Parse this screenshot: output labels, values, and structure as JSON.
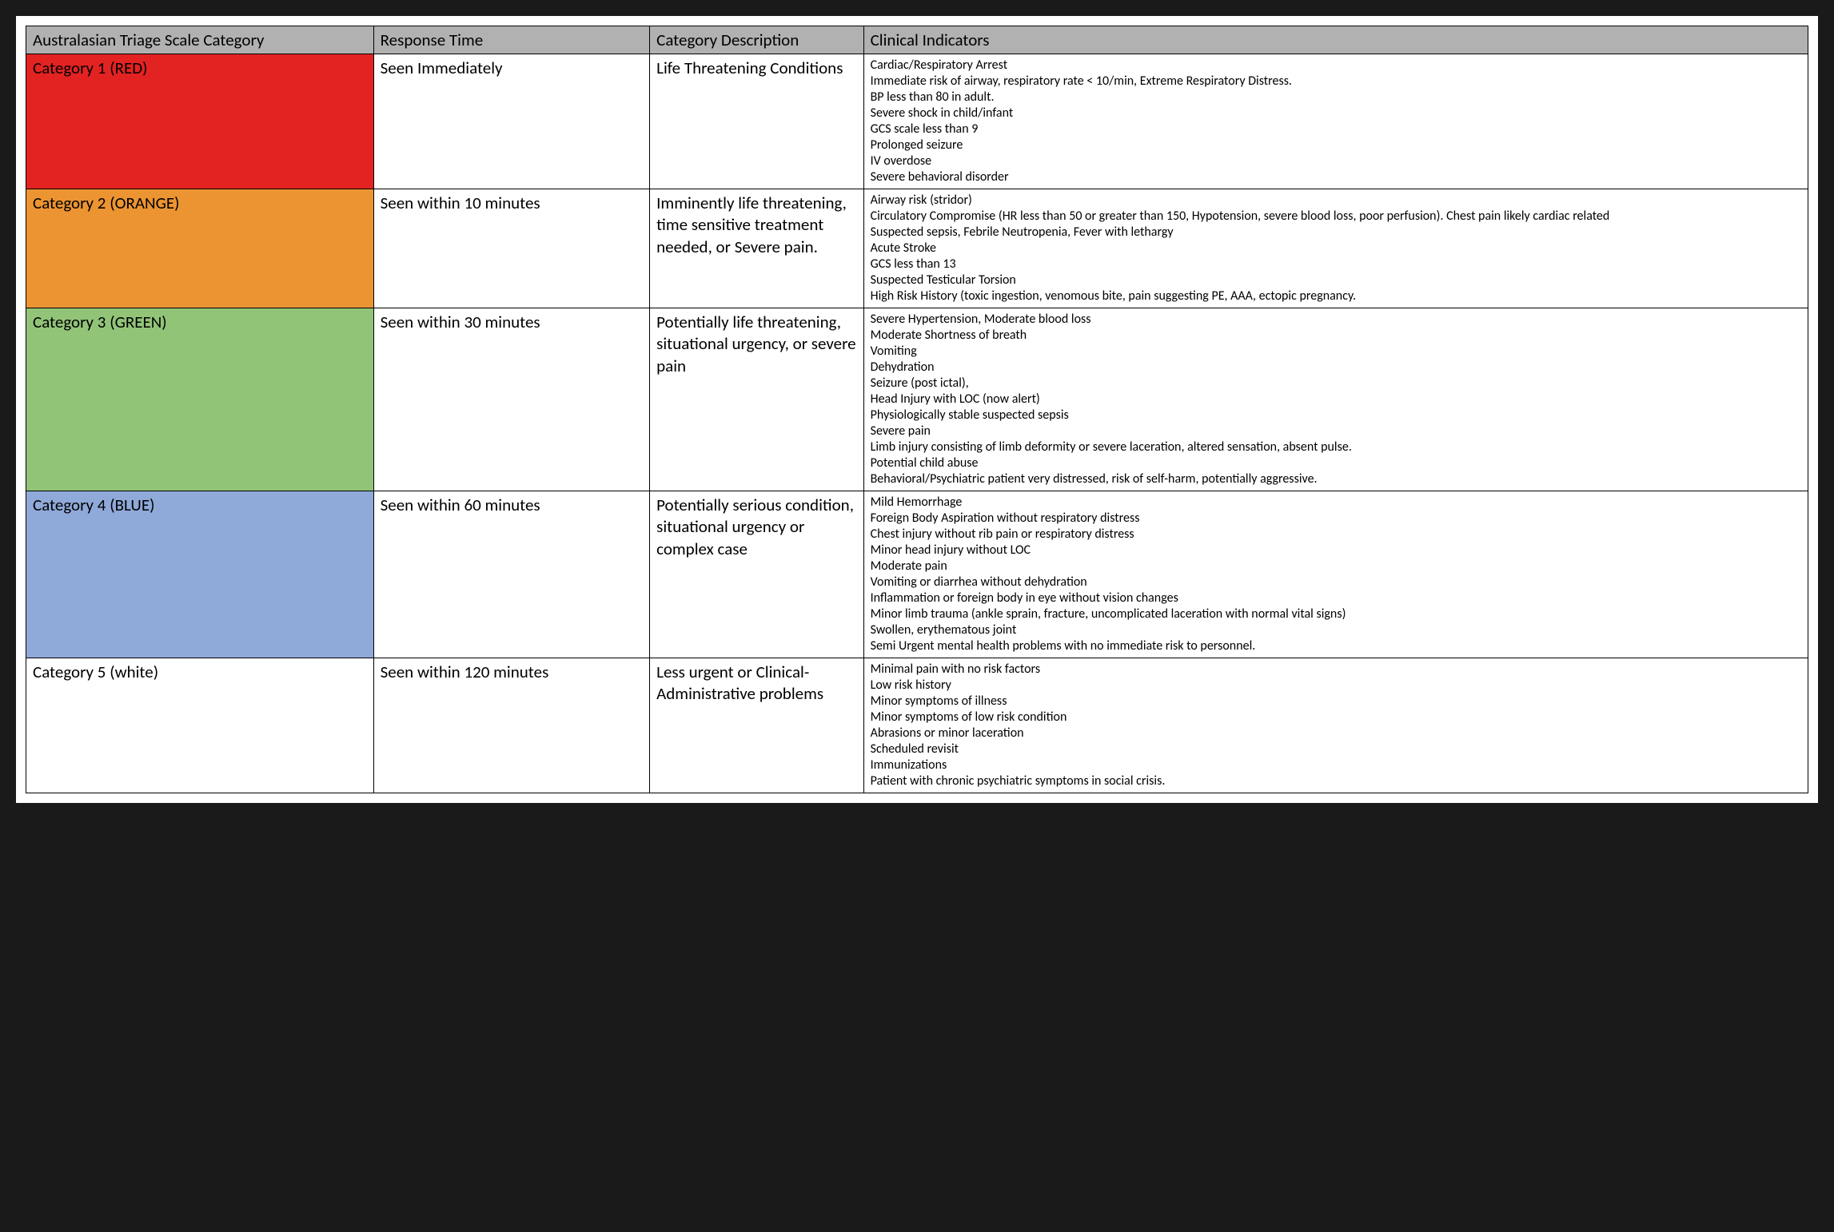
{
  "table": {
    "headers": {
      "category": "Australasian Triage Scale Category",
      "response": "Response Time",
      "description": "Category Description",
      "indicators": "Clinical Indicators"
    },
    "header_bg": "#b1b1b1",
    "border_color": "#000000",
    "page_bg": "#ffffff",
    "outer_bg": "#1a1a1a",
    "header_fontsize": 21,
    "body_fontsize": 21,
    "indicator_fontsize": 16,
    "column_widths_pct": [
      19.5,
      15.5,
      12,
      53
    ],
    "rows": [
      {
        "category": "Category 1 (RED)",
        "category_bg": "#e32322",
        "response": "Seen Immediately",
        "description": "Life Threatening Conditions",
        "indicators": [
          "Cardiac/Respiratory Arrest",
          "Immediate risk of airway, respiratory rate < 10/min, Extreme Respiratory Distress.",
          "BP less than 80 in adult.",
          "Severe shock in child/infant",
          "GCS scale less than 9",
          "Prolonged seizure",
          "IV overdose",
          "Severe behavioral disorder"
        ]
      },
      {
        "category": "Category 2 (ORANGE)",
        "category_bg": "#ec9432",
        "response": "Seen within 10 minutes",
        "description": "Imminently life threatening, time sensitive treatment needed, or Severe pain.",
        "indicators": [
          "Airway risk (stridor)",
          "Circulatory Compromise (HR less than 50 or greater than 150, Hypotension, severe blood loss, poor perfusion). Chest pain likely cardiac related",
          "Suspected sepsis, Febrile Neutropenia, Fever with lethargy",
          "Acute Stroke",
          "GCS less than 13",
          "Suspected Testicular Torsion",
          "High Risk History (toxic ingestion, venomous bite, pain suggesting PE, AAA, ectopic pregnancy."
        ]
      },
      {
        "category": "Category 3 (GREEN)",
        "category_bg": "#92c478",
        "response": "Seen within 30 minutes",
        "description": "Potentially life threatening, situational urgency, or severe pain",
        "indicators": [
          "Severe Hypertension, Moderate blood loss",
          "Moderate Shortness of breath",
          "Vomiting",
          "Dehydration",
          "Seizure (post ictal),",
          "Head Injury with LOC (now alert)",
          "Physiologically stable suspected sepsis",
          "Severe pain",
          "Limb injury consisting of limb deformity or severe laceration, altered sensation, absent pulse.",
          "Potential child abuse",
          "Behavioral/Psychiatric patient very distressed, risk of self-harm, potentially aggressive."
        ]
      },
      {
        "category": "Category 4 (BLUE)",
        "category_bg": "#8fa9d9",
        "response": "Seen within 60 minutes",
        "description": "Potentially serious condition, situational urgency or complex case",
        "indicators": [
          "Mild Hemorrhage",
          "Foreign Body Aspiration without respiratory distress",
          "Chest injury without rib pain or respiratory distress",
          "Minor head injury without LOC",
          "Moderate pain",
          "Vomiting or diarrhea without dehydration",
          "Inflammation or foreign body in eye without vision changes",
          "Minor limb trauma (ankle sprain, fracture, uncomplicated laceration with normal vital signs)",
          "Swollen, erythematous joint",
          "Semi Urgent mental health problems with no immediate risk to personnel."
        ]
      },
      {
        "category": "Category 5 (white)",
        "category_bg": "#ffffff",
        "response": "Seen within 120 minutes",
        "description": "Less urgent or Clinical-Administrative problems",
        "indicators": [
          "Minimal pain with no risk factors",
          "Low risk history",
          "Minor symptoms of illness",
          "Minor symptoms of low risk condition",
          "Abrasions or minor laceration",
          "Scheduled revisit",
          "Immunizations",
          "Patient with chronic psychiatric symptoms in social crisis."
        ]
      }
    ]
  }
}
